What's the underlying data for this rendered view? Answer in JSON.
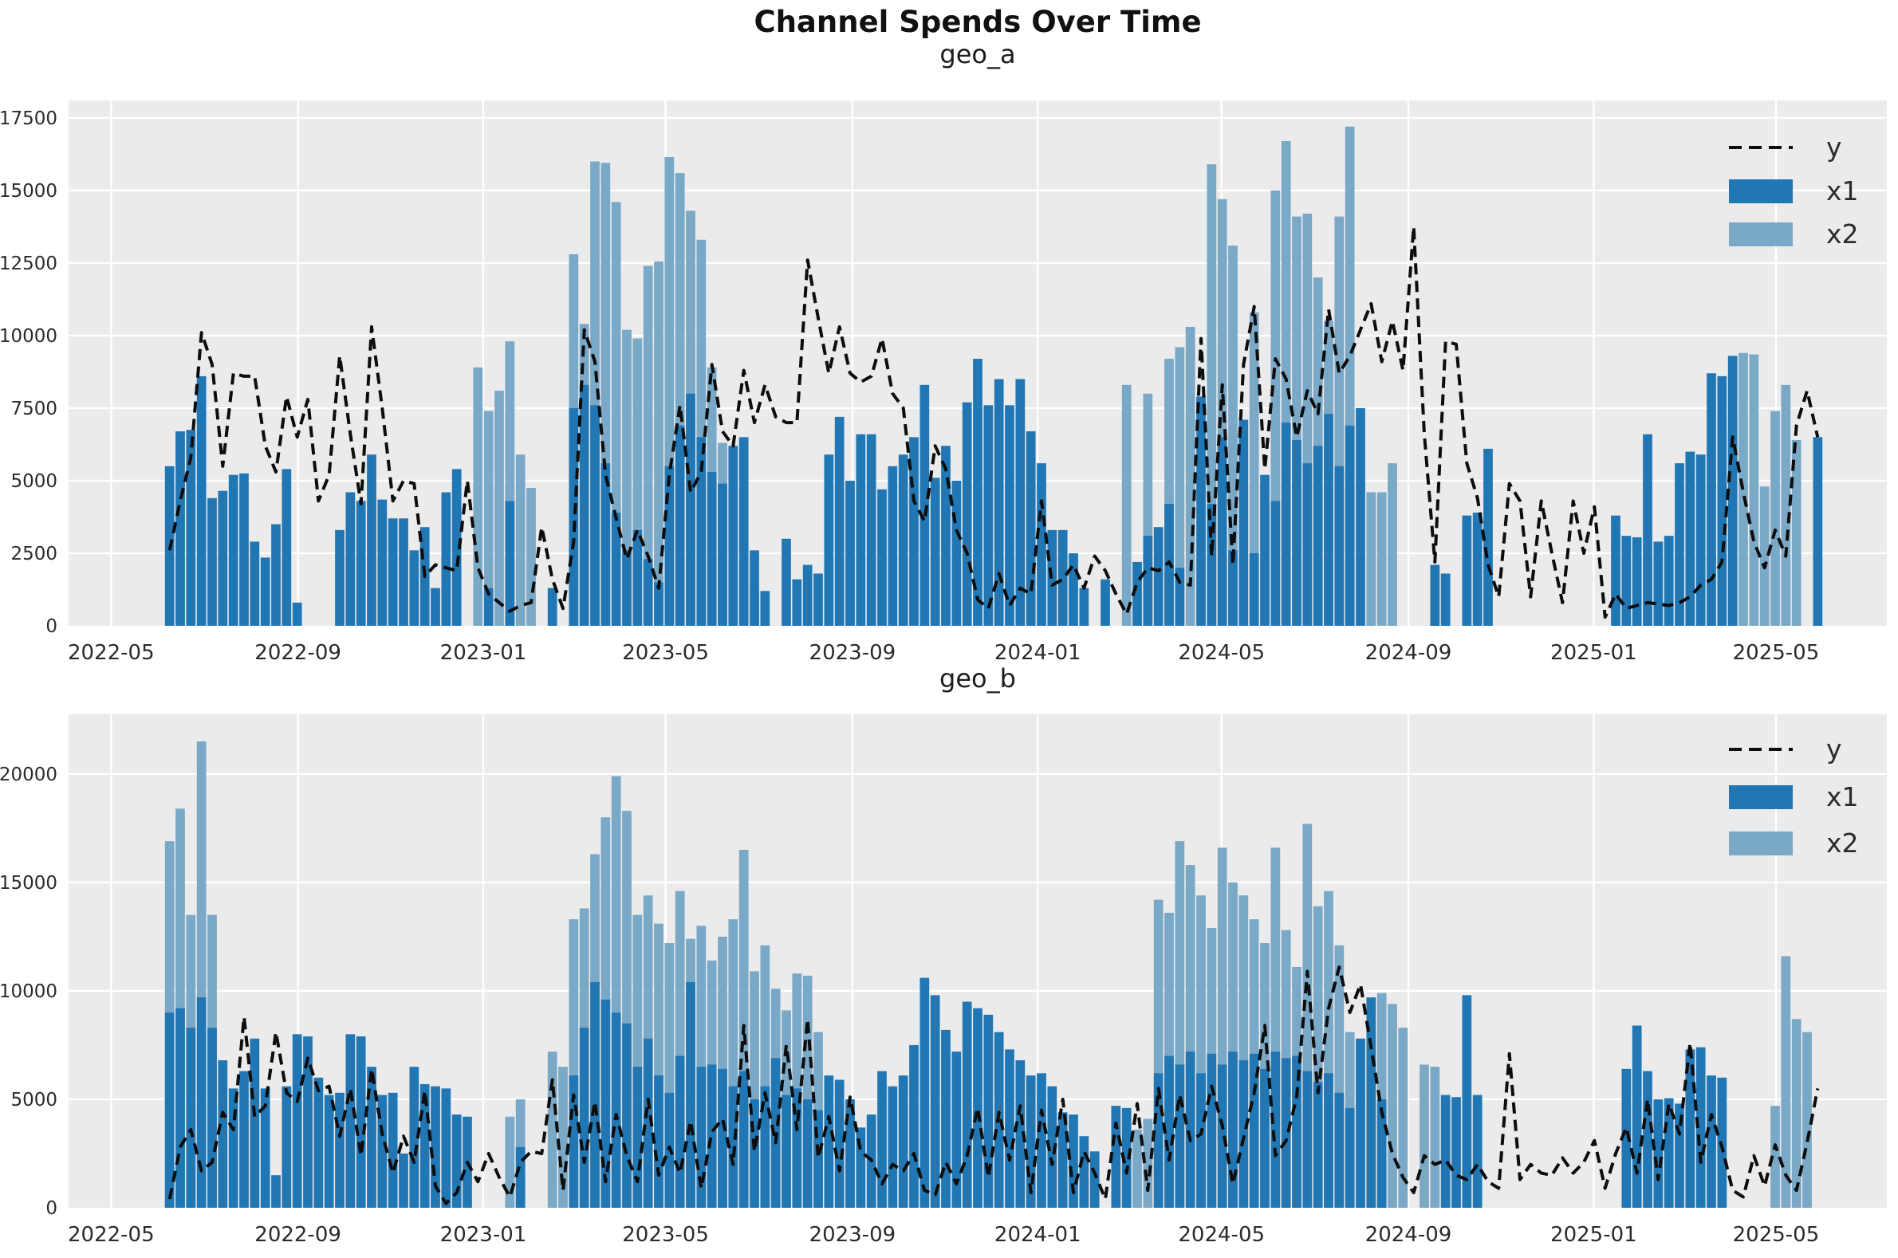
{
  "page": {
    "title": "Channel Spends Over Time"
  },
  "chart_data": {
    "type": "bar",
    "title": "Channel Spends Over Time",
    "legend": {
      "y_label": "y",
      "x1_label": "x1",
      "x2_label": "x2",
      "position": "upper right"
    },
    "colors": {
      "x1": "#2176b4",
      "x2": "#7aa8c7",
      "y_line": "#0d0d0d",
      "plot_bg": "#ebebeb",
      "grid": "#ffffff",
      "tick_text": "#2b2b2b"
    },
    "x_axis": {
      "freq": "weekly",
      "start_date": "2022-06-05",
      "axis_start": "2022-04-03",
      "axis_end": "2025-07-13",
      "tick_dates": [
        "2022-05-01",
        "2022-09-01",
        "2023-01-01",
        "2023-05-01",
        "2023-09-01",
        "2024-01-01",
        "2024-05-01",
        "2024-09-01",
        "2025-01-01",
        "2025-05-01"
      ],
      "tick_labels": [
        "2022-05",
        "2022-09",
        "2023-01",
        "2023-05",
        "2023-09",
        "2024-01",
        "2024-05",
        "2024-09",
        "2025-01",
        "2025-05"
      ]
    },
    "subplots": [
      {
        "id": "geo_a",
        "title": "geo_a",
        "ylim": [
          0,
          18100
        ],
        "yticks": [
          0,
          2500,
          5000,
          7500,
          10000,
          12500,
          15000,
          17500
        ],
        "series": {
          "x1": [
            5500,
            6700,
            6750,
            8600,
            4400,
            4650,
            5200,
            5250,
            2900,
            2350,
            3500,
            5400,
            800,
            0,
            0,
            0,
            3300,
            4600,
            4300,
            5900,
            4350,
            3700,
            3700,
            2600,
            3400,
            1300,
            4600,
            5400,
            0,
            0,
            1300,
            0,
            4300,
            0,
            0,
            0,
            1300,
            0,
            7500,
            8300,
            7600,
            5600,
            3900,
            2600,
            3300,
            2300,
            1500,
            5500,
            6900,
            8000,
            6500,
            5300,
            4900,
            6200,
            6500,
            2600,
            1200,
            0,
            3000,
            1600,
            2100,
            1800,
            5900,
            7200,
            5000,
            6600,
            6600,
            4700,
            5500,
            5900,
            6500,
            8300,
            5100,
            6200,
            5000,
            7700,
            9200,
            7600,
            8500,
            7600,
            8500,
            6700,
            5600,
            3300,
            3300,
            2500,
            1300,
            0,
            1600,
            0,
            0,
            2200,
            3100,
            3400,
            4200,
            2000,
            0,
            7900,
            4200,
            6500,
            2600,
            7100,
            2500,
            5200,
            4300,
            7000,
            6400,
            5600,
            6200,
            7300,
            5500,
            6900,
            7500,
            0,
            0,
            0,
            0,
            0,
            0,
            2100,
            1800,
            0,
            3800,
            3900,
            6100,
            0,
            0,
            0,
            0,
            0,
            0,
            0,
            0,
            0,
            0,
            0,
            3800,
            3100,
            3050,
            6600,
            2900,
            3100,
            5600,
            6000,
            5900,
            8700,
            8600,
            9300,
            0,
            0,
            0,
            0,
            0,
            0,
            0,
            6500
          ],
          "x2": [
            0,
            0,
            0,
            0,
            0,
            0,
            0,
            0,
            0,
            0,
            0,
            0,
            0,
            0,
            0,
            0,
            0,
            0,
            0,
            0,
            0,
            0,
            0,
            0,
            0,
            0,
            0,
            0,
            0,
            8900,
            7400,
            8100,
            9800,
            5900,
            4750,
            0,
            0,
            0,
            12800,
            10400,
            16000,
            15950,
            14600,
            10200,
            9900,
            12400,
            12550,
            16150,
            15600,
            14300,
            13300,
            8900,
            6300,
            0,
            0,
            1300,
            0,
            0,
            0,
            0,
            0,
            0,
            0,
            0,
            0,
            0,
            0,
            0,
            0,
            0,
            0,
            0,
            0,
            0,
            0,
            0,
            0,
            0,
            0,
            0,
            0,
            0,
            0,
            0,
            0,
            0,
            0,
            0,
            0,
            0,
            8300,
            0,
            8000,
            0,
            9200,
            9600,
            10300,
            0,
            15900,
            14700,
            13100,
            0,
            10800,
            0,
            15000,
            16700,
            14100,
            14200,
            12000,
            10500,
            14100,
            17200,
            0,
            4600,
            4600,
            5600,
            0,
            0,
            0,
            0,
            0,
            0,
            0,
            0,
            0,
            0,
            0,
            0,
            0,
            0,
            0,
            0,
            0,
            0,
            0,
            0,
            0,
            0,
            0,
            0,
            0,
            0,
            0,
            0,
            0,
            0,
            0,
            6700,
            9400,
            9350,
            4800,
            7400,
            8300,
            6400,
            0
          ],
          "y": [
            2600,
            4300,
            5800,
            10100,
            9000,
            5500,
            8700,
            8600,
            8600,
            6200,
            5300,
            7900,
            6500,
            7800,
            4300,
            5200,
            9300,
            6600,
            4200,
            10300,
            7500,
            4300,
            5000,
            4900,
            1700,
            2100,
            2000,
            1900,
            5000,
            2000,
            1100,
            800,
            500,
            700,
            800,
            3400,
            1600,
            600,
            2900,
            10200,
            9100,
            5200,
            3700,
            2300,
            3300,
            2400,
            1300,
            5200,
            7600,
            4600,
            5300,
            9000,
            6700,
            6200,
            8800,
            7000,
            8300,
            7200,
            7000,
            7000,
            12600,
            10600,
            8700,
            10300,
            8700,
            8400,
            8600,
            9900,
            8000,
            7500,
            4300,
            3600,
            6200,
            5400,
            3300,
            2500,
            900,
            600,
            1800,
            700,
            1300,
            1100,
            4300,
            1400,
            1600,
            2100,
            1300,
            2400,
            1900,
            1100,
            400,
            1500,
            2000,
            1900,
            2200,
            1500,
            1400,
            9900,
            2400,
            8300,
            2100,
            9000,
            11000,
            5400,
            9200,
            8500,
            6500,
            8100,
            7300,
            10900,
            8700,
            9300,
            10200,
            11100,
            9100,
            10500,
            8800,
            13750,
            6600,
            2200,
            9800,
            9700,
            5600,
            4400,
            2100,
            1000,
            4900,
            4300,
            1000,
            4300,
            2500,
            800,
            4300,
            2500,
            4100,
            300,
            1100,
            600,
            700,
            800,
            750,
            700,
            800,
            1000,
            1400,
            1600,
            2200,
            6500,
            4600,
            2900,
            2000,
            3300,
            2400,
            6900,
            8100,
            6500
          ]
        }
      },
      {
        "id": "geo_b",
        "title": "geo_b",
        "ylim": [
          0,
          22750
        ],
        "yticks": [
          0,
          5000,
          10000,
          15000,
          20000
        ],
        "series": {
          "x1": [
            9000,
            9200,
            8300,
            9700,
            8300,
            6800,
            5500,
            6300,
            7800,
            5500,
            1500,
            5600,
            8000,
            7900,
            6000,
            5200,
            5300,
            8000,
            7900,
            6500,
            5200,
            5300,
            2500,
            6500,
            5700,
            5600,
            5500,
            4300,
            4200,
            0,
            0,
            0,
            0,
            2800,
            0,
            0,
            0,
            0,
            6100,
            8300,
            10400,
            9600,
            9000,
            8500,
            6500,
            7800,
            6100,
            5300,
            7000,
            10400,
            6500,
            6600,
            6400,
            5600,
            6300,
            5000,
            5600,
            6900,
            5200,
            5500,
            5000,
            4500,
            6100,
            5900,
            5000,
            3700,
            4300,
            6300,
            5600,
            6100,
            7500,
            10600,
            9800,
            8200,
            7200,
            9500,
            9200,
            8900,
            8100,
            7300,
            6800,
            6100,
            6200,
            5600,
            4400,
            4300,
            3300,
            2600,
            0,
            4700,
            4600,
            0,
            0,
            6200,
            7000,
            6600,
            7200,
            6200,
            7100,
            6600,
            7200,
            6800,
            7100,
            6400,
            7200,
            6900,
            7000,
            6300,
            5800,
            6200,
            5300,
            4600,
            7800,
            9700,
            5000,
            0,
            0,
            0,
            0,
            0,
            5200,
            5100,
            9800,
            5200,
            0,
            0,
            0,
            0,
            0,
            0,
            0,
            0,
            0,
            0,
            0,
            0,
            0,
            6400,
            8400,
            6300,
            5000,
            5050,
            4800,
            7300,
            7400,
            6100,
            6000,
            0,
            0,
            0,
            0,
            0,
            0,
            0,
            0,
            0
          ],
          "x2": [
            16900,
            18400,
            13500,
            21500,
            13500,
            0,
            0,
            0,
            0,
            0,
            0,
            0,
            0,
            0,
            0,
            0,
            0,
            0,
            0,
            0,
            0,
            0,
            0,
            0,
            0,
            0,
            0,
            0,
            0,
            0,
            0,
            0,
            4200,
            5000,
            0,
            0,
            7200,
            6500,
            13300,
            13800,
            16300,
            18000,
            19900,
            18300,
            13500,
            14400,
            13100,
            12200,
            14600,
            12400,
            13000,
            11400,
            12500,
            13300,
            16500,
            10900,
            12100,
            10100,
            9100,
            10800,
            10700,
            8100,
            0,
            0,
            0,
            0,
            0,
            0,
            0,
            0,
            0,
            0,
            0,
            0,
            0,
            0,
            0,
            0,
            0,
            0,
            0,
            0,
            0,
            0,
            0,
            0,
            0,
            0,
            0,
            0,
            0,
            3600,
            4100,
            14200,
            13600,
            16900,
            15800,
            14400,
            12900,
            16600,
            15000,
            14400,
            13300,
            12200,
            16600,
            12800,
            11100,
            17700,
            13900,
            14600,
            12100,
            8100,
            7600,
            8200,
            9900,
            9400,
            8300,
            0,
            6600,
            6500,
            0,
            0,
            0,
            0,
            0,
            0,
            0,
            0,
            0,
            0,
            0,
            0,
            0,
            0,
            0,
            0,
            0,
            0,
            0,
            0,
            0,
            0,
            0,
            0,
            0,
            0,
            0,
            0,
            0,
            0,
            0,
            4700,
            11600,
            8700,
            8100,
            0,
            0
          ],
          "y": [
            400,
            2800,
            3600,
            1700,
            2100,
            4400,
            3600,
            8800,
            4200,
            4700,
            8100,
            5300,
            4900,
            6900,
            5400,
            5600,
            3300,
            5500,
            2400,
            6400,
            3400,
            1600,
            3300,
            2100,
            5400,
            1000,
            200,
            700,
            2100,
            1200,
            2500,
            1400,
            500,
            2100,
            2600,
            2500,
            5900,
            800,
            5200,
            2100,
            4900,
            1200,
            4300,
            2400,
            1200,
            5000,
            1500,
            2800,
            1600,
            4000,
            900,
            3500,
            4100,
            2000,
            8400,
            2600,
            5300,
            3000,
            7500,
            3600,
            8700,
            2300,
            4200,
            1700,
            5100,
            2600,
            2200,
            1100,
            2000,
            1700,
            2500,
            800,
            600,
            2100,
            1100,
            2400,
            4600,
            1400,
            4400,
            2200,
            4700,
            700,
            4500,
            2000,
            5000,
            700,
            2600,
            1600,
            400,
            3900,
            1600,
            4800,
            800,
            5500,
            2200,
            5200,
            3100,
            3400,
            5600,
            3800,
            1100,
            3200,
            5300,
            8400,
            2400,
            3100,
            5100,
            10900,
            5300,
            9200,
            11100,
            9000,
            10300,
            7400,
            4400,
            2500,
            1400,
            700,
            2400,
            2000,
            2200,
            1500,
            1300,
            2000,
            1200,
            900,
            7100,
            1300,
            2000,
            1600,
            1500,
            2300,
            1600,
            2100,
            3100,
            900,
            2500,
            3700,
            1600,
            5000,
            1300,
            4800,
            3400,
            7600,
            2100,
            4300,
            2800,
            800,
            500,
            2400,
            1000,
            2900,
            1500,
            800,
            3000,
            5500
          ]
        }
      }
    ]
  }
}
